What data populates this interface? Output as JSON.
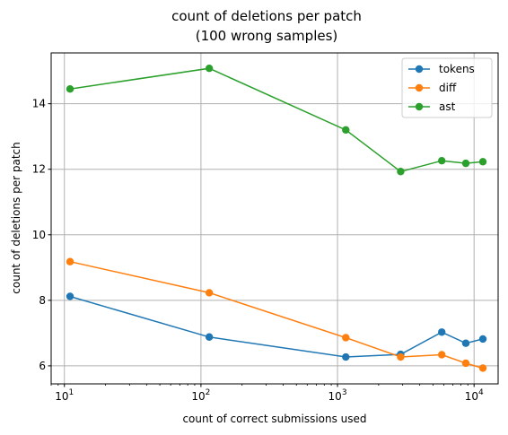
{
  "chart_data": {
    "type": "line",
    "title_lines": [
      "count of deletions per patch",
      "(100 wrong samples)"
    ],
    "xlabel": "count of correct submissions used",
    "ylabel": "count of deletions per patch",
    "x_scale": "log",
    "xlim": [
      8,
      15000
    ],
    "ylim": [
      5.45,
      15.55
    ],
    "x_major_ticks": [
      {
        "value": 10,
        "base": "10",
        "exp": "1"
      },
      {
        "value": 100,
        "base": "10",
        "exp": "2"
      },
      {
        "value": 1000,
        "base": "10",
        "exp": "3"
      },
      {
        "value": 10000,
        "base": "10",
        "exp": "4"
      }
    ],
    "y_ticks": [
      6,
      8,
      10,
      12,
      14
    ],
    "grid": true,
    "legend_position": "top-right",
    "x": [
      11,
      115,
      1150,
      2900,
      5800,
      8700,
      11600
    ],
    "series": [
      {
        "name": "tokens",
        "color": "#1f77b4",
        "values": [
          8.12,
          6.88,
          6.27,
          6.35,
          7.03,
          6.69,
          6.82
        ]
      },
      {
        "name": "diff",
        "color": "#ff7f0e",
        "values": [
          9.18,
          8.23,
          6.86,
          6.27,
          6.34,
          6.08,
          5.93
        ]
      },
      {
        "name": "ast",
        "color": "#2ca02c",
        "values": [
          14.45,
          15.08,
          13.2,
          11.93,
          12.26,
          12.18,
          12.23
        ]
      }
    ]
  }
}
